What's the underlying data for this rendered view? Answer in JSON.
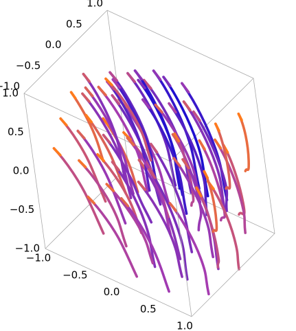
{
  "chart_data": {
    "type": "stream3d",
    "title": "",
    "xlabel": "",
    "ylabel": "",
    "zlabel": "",
    "xlim": [
      -1.0,
      1.0
    ],
    "ylim": [
      -1.0,
      1.0
    ],
    "zlim": [
      -1.0,
      1.0
    ],
    "box": true,
    "axes": {
      "bottom_front": {
        "ticks": [
          -1.0,
          -0.5,
          0.0,
          0.5,
          1.0
        ],
        "labels": [
          "−1.0",
          "−0.5",
          "0.0",
          "0.5",
          "1.0"
        ]
      },
      "top_left": {
        "ticks": [
          -1.0,
          -0.5,
          0.0,
          0.5,
          1.0
        ],
        "labels": [
          "−1.0",
          "−0.5",
          "0.0",
          "0.5",
          "1.0"
        ]
      },
      "vertical": {
        "ticks": [
          -1.0,
          -0.5,
          0.0,
          0.5,
          1.0
        ],
        "labels": [
          "−1.0",
          "−0.5",
          "0.0",
          "0.5",
          "1.0"
        ]
      }
    },
    "color_scale": {
      "slow": "#ff7b1c",
      "mid": "#a53cb0",
      "fast": "#1e0fd0"
    },
    "streamlines": [
      {
        "x": [
          -1.0,
          -0.82,
          -0.62,
          -0.42
        ],
        "y": [
          0.0,
          -0.05,
          -0.18,
          -0.36
        ],
        "z": [
          0.48,
          0.36,
          0.2,
          0.04
        ],
        "speed": 0.15
      },
      {
        "x": [
          -1.0,
          -0.78,
          -0.55,
          -0.3
        ],
        "y": [
          0.25,
          0.2,
          0.05,
          -0.15
        ],
        "z": [
          0.05,
          -0.08,
          -0.26,
          -0.44
        ],
        "speed": 0.2
      },
      {
        "x": [
          -1.0,
          -0.8,
          -0.58,
          -0.35
        ],
        "y": [
          0.6,
          0.55,
          0.4,
          0.18
        ],
        "z": [
          -0.18,
          -0.3,
          -0.46,
          -0.62
        ],
        "speed": 0.18
      },
      {
        "x": [
          -1.0,
          -0.75,
          -0.5,
          -0.22
        ],
        "y": [
          -0.3,
          -0.36,
          -0.52,
          -0.72
        ],
        "z": [
          0.3,
          0.2,
          0.02,
          -0.2
        ],
        "speed": 0.3
      },
      {
        "x": [
          -0.85,
          -0.55,
          -0.25,
          0.05
        ],
        "y": [
          0.1,
          0.02,
          -0.2,
          -0.5
        ],
        "z": [
          0.55,
          0.42,
          0.2,
          -0.1
        ],
        "speed": 0.55
      },
      {
        "x": [
          -0.9,
          -0.6,
          -0.3,
          0.0
        ],
        "y": [
          0.45,
          0.38,
          0.18,
          -0.12
        ],
        "z": [
          0.35,
          0.22,
          0.0,
          -0.3
        ],
        "speed": 0.5
      },
      {
        "x": [
          -0.8,
          -0.5,
          -0.2,
          0.12
        ],
        "y": [
          0.7,
          0.62,
          0.42,
          0.12
        ],
        "z": [
          0.1,
          -0.02,
          -0.24,
          -0.52
        ],
        "speed": 0.52
      },
      {
        "x": [
          -0.7,
          -0.4,
          -0.1,
          0.2
        ],
        "y": [
          -0.2,
          -0.28,
          -0.48,
          -0.78
        ],
        "z": [
          0.7,
          0.58,
          0.36,
          0.06
        ],
        "speed": 0.6
      },
      {
        "x": [
          -0.6,
          -0.3,
          0.0,
          0.3
        ],
        "y": [
          0.3,
          0.22,
          0.0,
          -0.34
        ],
        "z": [
          0.75,
          0.62,
          0.38,
          0.04
        ],
        "speed": 0.75
      },
      {
        "x": [
          -0.55,
          -0.25,
          0.05,
          0.35
        ],
        "y": [
          0.6,
          0.52,
          0.3,
          -0.02
        ],
        "z": [
          0.6,
          0.46,
          0.22,
          -0.12
        ],
        "speed": 0.72
      },
      {
        "x": [
          -0.5,
          -0.2,
          0.1,
          0.4
        ],
        "y": [
          0.85,
          0.78,
          0.56,
          0.22
        ],
        "z": [
          0.4,
          0.26,
          0.02,
          -0.32
        ],
        "speed": 0.68
      },
      {
        "x": [
          -0.4,
          -0.1,
          0.2,
          0.5
        ],
        "y": [
          0.05,
          -0.04,
          -0.28,
          -0.62
        ],
        "z": [
          0.88,
          0.76,
          0.5,
          0.14
        ],
        "speed": 0.85
      },
      {
        "x": [
          -0.3,
          0.0,
          0.3,
          0.6
        ],
        "y": [
          0.4,
          0.3,
          0.06,
          -0.3
        ],
        "z": [
          0.85,
          0.72,
          0.46,
          0.1
        ],
        "speed": 0.95
      },
      {
        "x": [
          -0.25,
          0.05,
          0.35,
          0.65
        ],
        "y": [
          0.72,
          0.62,
          0.38,
          0.04
        ],
        "z": [
          0.7,
          0.56,
          0.3,
          -0.06
        ],
        "speed": 0.92
      },
      {
        "x": [
          -0.2,
          0.1,
          0.4,
          0.7
        ],
        "y": [
          -0.3,
          -0.4,
          -0.62,
          -0.9
        ],
        "z": [
          0.95,
          0.82,
          0.58,
          0.26
        ],
        "speed": 0.7
      },
      {
        "x": [
          -0.1,
          0.2,
          0.5,
          0.8
        ],
        "y": [
          0.15,
          0.05,
          -0.2,
          -0.55
        ],
        "z": [
          0.95,
          0.84,
          0.6,
          0.24
        ],
        "speed": 0.98
      },
      {
        "x": [
          0.0,
          0.3,
          0.6,
          0.9
        ],
        "y": [
          0.55,
          0.44,
          0.2,
          -0.16
        ],
        "z": [
          0.82,
          0.68,
          0.42,
          0.06
        ],
        "speed": 1.0
      },
      {
        "x": [
          0.05,
          0.35,
          0.65,
          0.95
        ],
        "y": [
          0.85,
          0.74,
          0.5,
          0.16
        ],
        "z": [
          0.6,
          0.46,
          0.2,
          -0.14
        ],
        "speed": 0.9
      },
      {
        "x": [
          0.1,
          0.4,
          0.7,
          0.98
        ],
        "y": [
          -0.1,
          -0.2,
          -0.45,
          -0.78
        ],
        "z": [
          0.92,
          0.8,
          0.55,
          0.2
        ],
        "speed": 0.88
      },
      {
        "x": [
          0.2,
          0.5,
          0.78,
          1.0
        ],
        "y": [
          0.3,
          0.2,
          -0.05,
          -0.38
        ],
        "z": [
          0.7,
          0.56,
          0.3,
          -0.02
        ],
        "speed": 0.8
      },
      {
        "x": [
          0.3,
          0.58,
          0.85,
          1.0
        ],
        "y": [
          0.65,
          0.55,
          0.3,
          0.05
        ],
        "z": [
          0.45,
          0.3,
          0.04,
          -0.2
        ],
        "speed": 0.7
      },
      {
        "x": [
          0.4,
          0.66,
          0.9,
          1.0
        ],
        "y": [
          0.0,
          -0.1,
          -0.36,
          -0.6
        ],
        "z": [
          0.55,
          0.4,
          0.12,
          -0.1
        ],
        "speed": 0.55
      },
      {
        "x": [
          0.5,
          0.74,
          0.96,
          1.0
        ],
        "y": [
          0.4,
          0.3,
          0.05,
          -0.1
        ],
        "z": [
          0.3,
          0.14,
          -0.14,
          -0.24
        ],
        "speed": 0.45
      },
      {
        "x": [
          0.6,
          0.8,
          1.0,
          1.0
        ],
        "y": [
          0.75,
          0.66,
          0.42,
          0.3
        ],
        "z": [
          0.1,
          -0.04,
          -0.3,
          -0.38
        ],
        "speed": 0.3
      },
      {
        "x": [
          -0.6,
          -0.32,
          -0.05,
          0.22
        ],
        "y": [
          -0.55,
          -0.62,
          -0.8,
          -1.0
        ],
        "z": [
          0.45,
          0.34,
          0.12,
          -0.14
        ],
        "speed": 0.55
      },
      {
        "x": [
          -0.2,
          0.08,
          0.35,
          0.6
        ],
        "y": [
          -0.6,
          -0.68,
          -0.86,
          -1.0
        ],
        "z": [
          0.6,
          0.48,
          0.26,
          0.04
        ],
        "speed": 0.65
      },
      {
        "x": [
          0.2,
          0.46,
          0.72,
          0.95
        ],
        "y": [
          -0.5,
          -0.58,
          -0.78,
          -1.0
        ],
        "z": [
          0.4,
          0.26,
          0.0,
          -0.28
        ],
        "speed": 0.6
      },
      {
        "x": [
          -0.95,
          -0.68,
          -0.4,
          -0.12
        ],
        "y": [
          -0.6,
          -0.66,
          -0.82,
          -1.0
        ],
        "z": [
          0.1,
          0.0,
          -0.2,
          -0.42
        ],
        "speed": 0.35
      },
      {
        "x": [
          -0.9,
          -0.62,
          -0.35,
          -0.08
        ],
        "y": [
          0.85,
          0.8,
          0.62,
          0.36
        ],
        "z": [
          -0.45,
          -0.56,
          -0.74,
          -0.92
        ],
        "speed": 0.35
      },
      {
        "x": [
          -0.45,
          -0.18,
          0.1,
          0.36
        ],
        "y": [
          0.95,
          0.9,
          0.72,
          0.44
        ],
        "z": [
          0.05,
          -0.08,
          -0.3,
          -0.58
        ],
        "speed": 0.55
      },
      {
        "x": [
          -0.05,
          0.22,
          0.5,
          0.76
        ],
        "y": [
          0.98,
          0.9,
          0.68,
          0.36
        ],
        "z": [
          0.25,
          0.1,
          -0.16,
          -0.48
        ],
        "speed": 0.62
      },
      {
        "x": [
          0.35,
          0.6,
          0.84,
          1.0
        ],
        "y": [
          0.95,
          0.86,
          0.62,
          0.38
        ],
        "z": [
          -0.05,
          -0.2,
          -0.46,
          -0.66
        ],
        "speed": 0.42
      },
      {
        "x": [
          -0.75,
          -0.48,
          -0.2,
          0.08
        ],
        "y": [
          -0.05,
          -0.14,
          -0.36,
          -0.68
        ],
        "z": [
          0.85,
          0.74,
          0.52,
          0.22
        ],
        "speed": 0.62
      },
      {
        "x": [
          -0.35,
          -0.06,
          0.22,
          0.5
        ],
        "y": [
          -0.15,
          -0.24,
          -0.46,
          -0.8
        ],
        "z": [
          0.98,
          0.88,
          0.64,
          0.3
        ],
        "speed": 0.78
      },
      {
        "x": [
          0.6,
          0.8,
          0.96,
          1.0
        ],
        "y": [
          -0.25,
          -0.34,
          -0.56,
          -0.68
        ],
        "z": [
          0.78,
          0.64,
          0.38,
          0.26
        ],
        "speed": 0.4
      },
      {
        "x": [
          -0.98,
          -0.72,
          -0.46,
          -0.2
        ],
        "y": [
          0.35,
          0.3,
          0.14,
          -0.08
        ],
        "z": [
          -0.5,
          -0.6,
          -0.76,
          -0.94
        ],
        "speed": 0.28
      },
      {
        "x": [
          -0.65,
          -0.38,
          -0.1,
          0.18
        ],
        "y": [
          0.55,
          0.48,
          0.28,
          -0.02
        ],
        "z": [
          -0.25,
          -0.36,
          -0.56,
          -0.82
        ],
        "speed": 0.5
      },
      {
        "x": [
          -0.25,
          0.02,
          0.3,
          0.58
        ],
        "y": [
          0.45,
          0.36,
          0.12,
          -0.2
        ],
        "z": [
          -0.1,
          -0.24,
          -0.48,
          -0.78
        ],
        "speed": 0.66
      },
      {
        "x": [
          0.15,
          0.42,
          0.68,
          0.92
        ],
        "y": [
          0.5,
          0.4,
          0.14,
          -0.18
        ],
        "z": [
          -0.15,
          -0.3,
          -0.56,
          -0.86
        ],
        "speed": 0.58
      },
      {
        "x": [
          0.5,
          0.72,
          0.92,
          1.0
        ],
        "y": [
          0.2,
          0.1,
          -0.15,
          -0.3
        ],
        "z": [
          -0.2,
          -0.36,
          -0.62,
          -0.74
        ],
        "speed": 0.36
      },
      {
        "x": [
          -0.85,
          -0.58,
          -0.3,
          -0.02
        ],
        "y": [
          -0.25,
          -0.3,
          -0.46,
          -0.7
        ],
        "z": [
          -0.2,
          -0.3,
          -0.48,
          -0.7
        ],
        "speed": 0.4
      },
      {
        "x": [
          -0.4,
          -0.12,
          0.16,
          0.44
        ],
        "y": [
          -0.2,
          -0.28,
          -0.5,
          -0.82
        ],
        "z": [
          -0.05,
          -0.18,
          -0.42,
          -0.7
        ],
        "speed": 0.62
      },
      {
        "x": [
          0.05,
          0.32,
          0.6,
          0.86
        ],
        "y": [
          -0.1,
          -0.2,
          -0.44,
          -0.78
        ],
        "z": [
          0.0,
          -0.14,
          -0.4,
          -0.7
        ],
        "speed": 0.66
      },
      {
        "x": [
          -0.7,
          -0.42,
          -0.14,
          0.14
        ],
        "y": [
          0.05,
          0.0,
          -0.16,
          -0.42
        ],
        "z": [
          -0.6,
          -0.7,
          -0.86,
          -1.0
        ],
        "speed": 0.45
      },
      {
        "x": [
          -0.3,
          -0.02,
          0.26,
          0.54
        ],
        "y": [
          0.15,
          0.08,
          -0.12,
          -0.42
        ],
        "z": [
          -0.45,
          -0.58,
          -0.78,
          -1.0
        ],
        "speed": 0.6
      },
      {
        "x": [
          0.15,
          0.42,
          0.7,
          0.95
        ],
        "y": [
          0.1,
          0.02,
          -0.2,
          -0.5
        ],
        "z": [
          -0.5,
          -0.62,
          -0.82,
          -1.0
        ],
        "speed": 0.5
      },
      {
        "x": [
          -0.55,
          -0.28,
          0.0,
          0.28
        ],
        "y": [
          -0.6,
          -0.66,
          -0.82,
          -1.0
        ],
        "z": [
          -0.35,
          -0.44,
          -0.6,
          -0.8
        ],
        "speed": 0.45
      },
      {
        "x": [
          -0.1,
          0.18,
          0.46,
          0.72
        ],
        "y": [
          -0.55,
          -0.62,
          -0.8,
          -1.0
        ],
        "z": [
          -0.2,
          -0.32,
          -0.54,
          -0.8
        ],
        "speed": 0.52
      },
      {
        "x": [
          -0.95,
          -0.7,
          -0.44,
          -0.18
        ],
        "y": [
          0.7,
          0.66,
          0.52,
          0.3
        ],
        "z": [
          0.3,
          0.2,
          0.02,
          -0.2
        ],
        "speed": 0.3
      },
      {
        "x": [
          -0.15,
          0.12,
          0.4,
          0.66
        ],
        "y": [
          0.75,
          0.66,
          0.44,
          0.12
        ],
        "z": [
          -0.4,
          -0.52,
          -0.74,
          -0.98
        ],
        "speed": 0.55
      },
      {
        "x": [
          0.3,
          0.56,
          0.8,
          1.0
        ],
        "y": [
          0.75,
          0.66,
          0.42,
          0.14
        ],
        "z": [
          -0.5,
          -0.62,
          -0.84,
          -1.0
        ],
        "speed": 0.32
      },
      {
        "x": [
          0.7,
          0.86,
          1.0,
          1.0
        ],
        "y": [
          0.5,
          0.42,
          0.2,
          0.1
        ],
        "z": [
          0.55,
          0.4,
          0.14,
          0.06
        ],
        "speed": 0.2
      },
      {
        "x": [
          0.75,
          0.9,
          1.0,
          1.0
        ],
        "y": [
          0.05,
          -0.02,
          -0.2,
          -0.3
        ],
        "z": [
          0.2,
          0.06,
          -0.2,
          -0.28
        ],
        "speed": 0.15
      },
      {
        "x": [
          0.78,
          0.92,
          1.0,
          1.0
        ],
        "y": [
          0.9,
          0.84,
          0.66,
          0.56
        ],
        "z": [
          0.5,
          0.36,
          0.12,
          0.04
        ],
        "speed": 0.12
      }
    ]
  }
}
